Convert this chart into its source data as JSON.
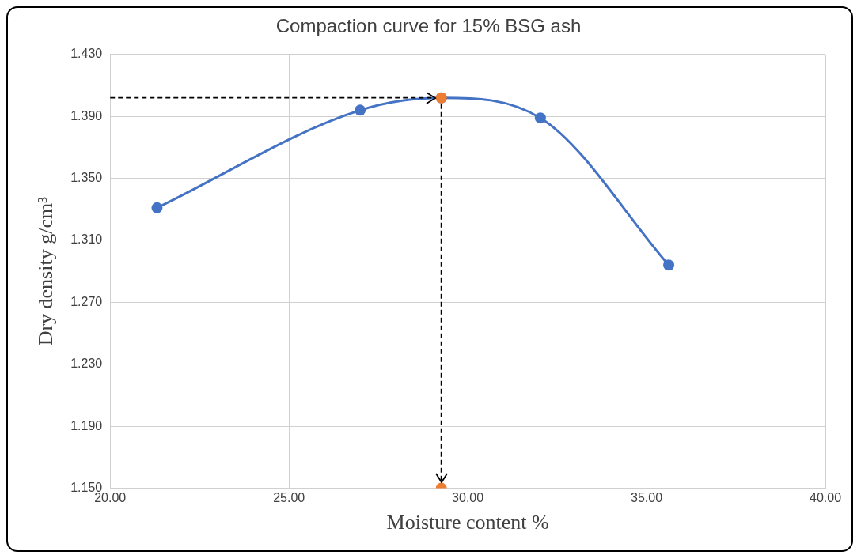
{
  "chart_data": {
    "type": "line",
    "title": "Compaction curve for 15% BSG ash",
    "xlabel": "Moisture content %",
    "ylabel": "Dry density g/cm³",
    "xlim": [
      20,
      40
    ],
    "xticks": [
      {
        "value": 20,
        "label": "20.00"
      },
      {
        "value": 25,
        "label": "25.00"
      },
      {
        "value": 30,
        "label": "30.00"
      },
      {
        "value": 35,
        "label": "35.00"
      },
      {
        "value": 40,
        "label": "40.00"
      }
    ],
    "ylim": [
      1.15,
      1.43
    ],
    "yticks": [
      {
        "value": 1.15,
        "label": "1.150"
      },
      {
        "value": 1.19,
        "label": "1.190"
      },
      {
        "value": 1.23,
        "label": "1.230"
      },
      {
        "value": 1.27,
        "label": "1.270"
      },
      {
        "value": 1.31,
        "label": "1.310"
      },
      {
        "value": 1.35,
        "label": "1.350"
      },
      {
        "value": 1.39,
        "label": "1.390"
      },
      {
        "value": 1.43,
        "label": "1.430"
      }
    ],
    "grid": true,
    "legend": false,
    "ref_lines": [
      {
        "axis": "y",
        "value": 1.402,
        "color": "#000000",
        "line_style": "dashed"
      },
      {
        "axis": "x",
        "value": 29.26,
        "color": "#000000",
        "line_style": "dashed"
      }
    ],
    "series": [
      {
        "type": "line",
        "color": "#4472c4",
        "marker": "circle",
        "line_style": "solid",
        "x": [
          21.31,
          26.99,
          29.26,
          32.03,
          35.62
        ],
        "values": [
          1.331,
          1.394,
          1.402,
          1.389,
          1.294
        ]
      },
      {
        "type": "scatter",
        "color": "#ed7d31",
        "marker": "circle",
        "x": [
          29.26,
          29.26
        ],
        "values": [
          1.402,
          1.15
        ]
      }
    ]
  }
}
